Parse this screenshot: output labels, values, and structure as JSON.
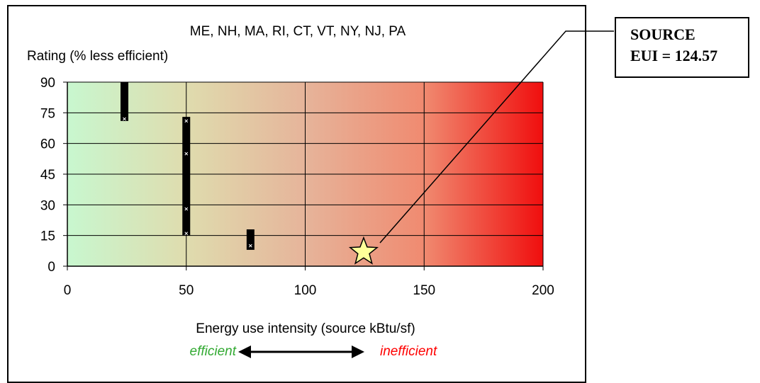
{
  "chart_data": {
    "type": "scatter",
    "title": "ME, NH, MA, RI, CT, VT, NY, NJ, PA",
    "xlabel": "Energy use intensity (source kBtu/sf)",
    "ylabel": "Rating (% less efficient)",
    "xlim": [
      0,
      200
    ],
    "ylim": [
      0,
      90
    ],
    "x_ticks": [
      "0",
      "50",
      "100",
      "150",
      "200"
    ],
    "y_ticks": [
      "0",
      "15",
      "30",
      "45",
      "60",
      "75",
      "90"
    ],
    "grid": true,
    "background_gradient": [
      "#c8f7cf",
      "#dfdcae",
      "#e6b49a",
      "#f08a70",
      "#f00e0e"
    ],
    "bars": [
      {
        "x": 24,
        "y_low": 71,
        "y_high": 90
      },
      {
        "x": 50,
        "y_low": 15,
        "y_high": 73
      },
      {
        "x": 77,
        "y_low": 8,
        "y_high": 18
      }
    ],
    "markers": [
      {
        "x": 24,
        "y": 72
      },
      {
        "x": 50,
        "y": 16
      },
      {
        "x": 50,
        "y": 28
      },
      {
        "x": 50,
        "y": 55
      },
      {
        "x": 50,
        "y": 71
      },
      {
        "x": 77,
        "y": 10
      }
    ],
    "star": {
      "x": 124.57,
      "y": 7,
      "color": "#ffff99"
    },
    "scale_left_label": "efficient",
    "scale_right_label": "inefficient",
    "scale_left_color": "#33aa33",
    "scale_right_color": "#ff0000"
  },
  "source_box": {
    "line1": "SOURCE",
    "line2": "EUI = 124.57"
  }
}
